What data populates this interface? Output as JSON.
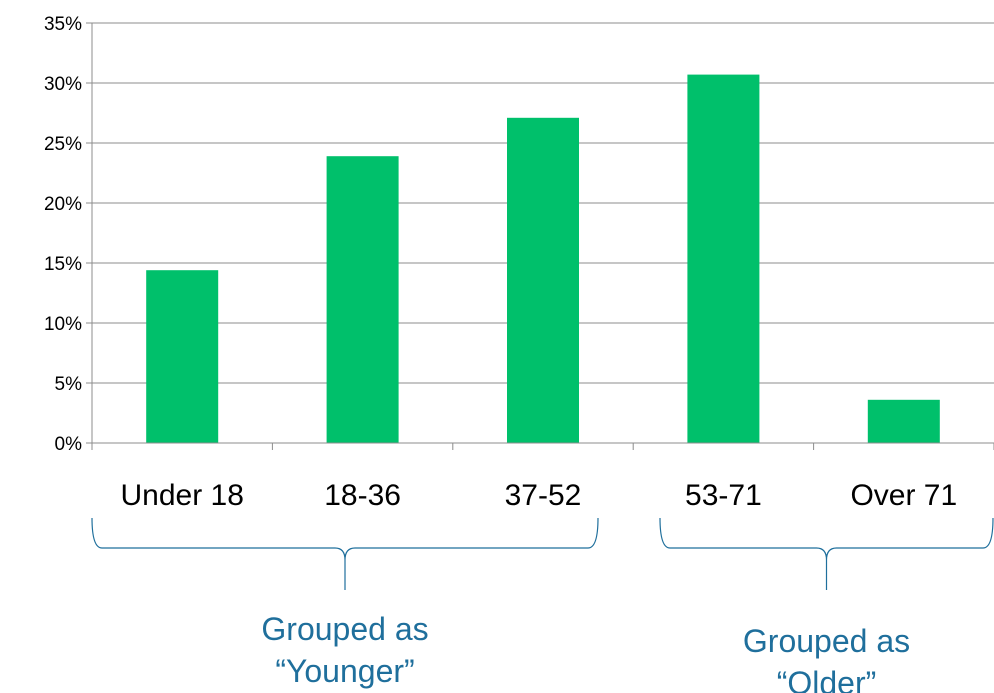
{
  "chart_data": {
    "type": "bar",
    "categories": [
      "Under 18",
      "18-36",
      "37-52",
      "53-71",
      "Over 71"
    ],
    "values": [
      14.4,
      23.9,
      27.1,
      30.7,
      3.6
    ],
    "y_ticks": [
      "0%",
      "5%",
      "10%",
      "15%",
      "20%",
      "25%",
      "30%",
      "35%"
    ],
    "ylim": [
      0,
      35
    ],
    "y_unit": "%",
    "grid": true,
    "bar_color": "#00c06b",
    "groups": [
      {
        "line1": "Grouped as",
        "line2": "“Younger”",
        "categories": [
          "Under 18",
          "18-36",
          "37-52"
        ]
      },
      {
        "line1": "Grouped as",
        "line2": "“Older”",
        "categories": [
          "53-71",
          "Over 71"
        ]
      }
    ],
    "group_color": "#1f6f9c"
  }
}
